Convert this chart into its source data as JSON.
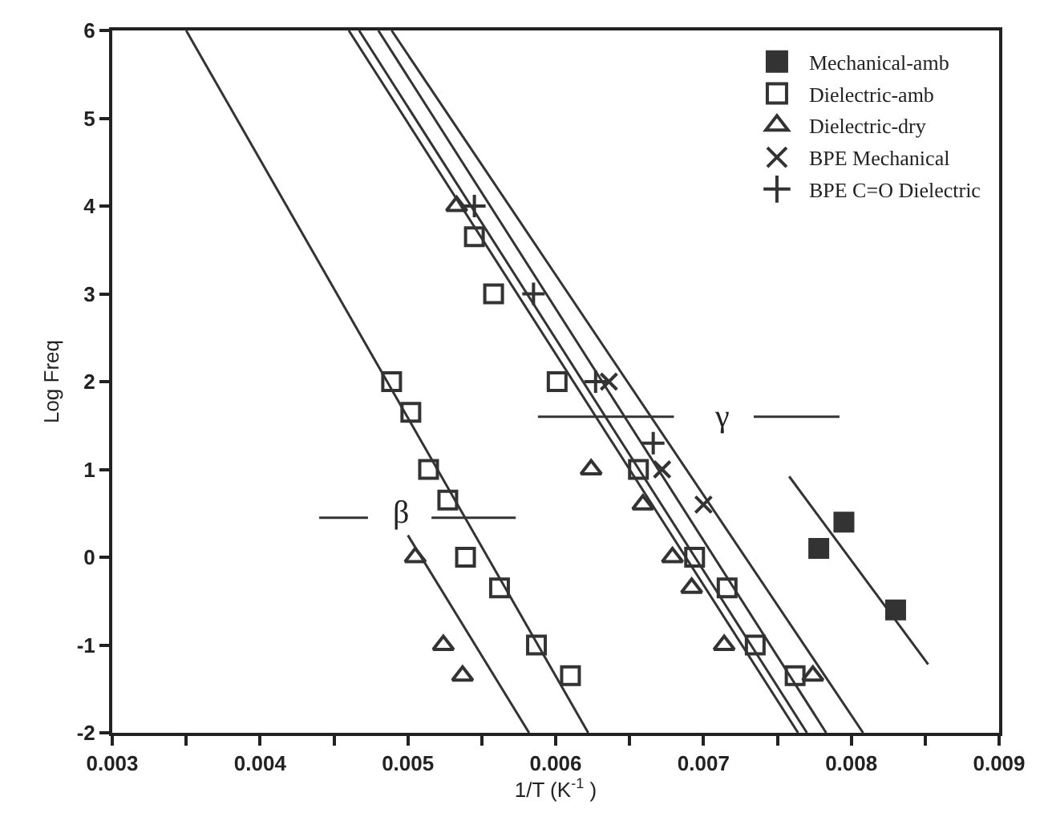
{
  "chart_data": {
    "type": "scatter",
    "xlabel": "1/T (K$^{-1}$ )",
    "ylabel": "Log Freq",
    "xlim": [
      0.003,
      0.009
    ],
    "ylim": [
      -2,
      6
    ],
    "xticks": [
      {
        "value": 0.003,
        "label": "0.003"
      },
      {
        "value": 0.0035,
        "label": null
      },
      {
        "value": 0.004,
        "label": "0.004"
      },
      {
        "value": 0.0045,
        "label": null
      },
      {
        "value": 0.005,
        "label": "0.005"
      },
      {
        "value": 0.0055,
        "label": null
      },
      {
        "value": 0.006,
        "label": "0.006"
      },
      {
        "value": 0.0065,
        "label": null
      },
      {
        "value": 0.007,
        "label": "0.007"
      },
      {
        "value": 0.0075,
        "label": null
      },
      {
        "value": 0.008,
        "label": "0.008"
      },
      {
        "value": 0.0085,
        "label": null
      },
      {
        "value": 0.009,
        "label": "0.009"
      }
    ],
    "yticks": [
      -2,
      -1,
      0,
      1,
      2,
      3,
      4,
      5,
      6
    ],
    "legend": "top right",
    "series": [
      {
        "name": "Mechanical-amb",
        "color": "#333333",
        "marker": "square",
        "x": [
          0.00778,
          0.00795,
          0.0083
        ],
        "values": [
          0.1,
          0.4,
          -0.6
        ]
      },
      {
        "name": "Dielectric-amb",
        "color": "#333333",
        "marker": "square-open",
        "x": [
          0.00489,
          0.00502,
          0.00514,
          0.00527,
          0.00539,
          0.00562,
          0.00587,
          0.0061,
          0.00545,
          0.00558,
          0.00601,
          0.00656,
          0.00694,
          0.00716,
          0.00735,
          0.00762
        ],
        "values": [
          2.0,
          1.65,
          1.0,
          0.65,
          0,
          -0.35,
          -1.0,
          -1.35,
          3.65,
          3.0,
          2.0,
          1.0,
          0,
          -0.35,
          -1.0,
          -1.35
        ]
      },
      {
        "name": "Dielectric-dry",
        "color": "#333333",
        "marker": "triangle-open",
        "x": [
          0.00505,
          0.00524,
          0.00537,
          0.00533,
          0.00624,
          0.00659,
          0.00679,
          0.00692,
          0.00714,
          0.00774
        ],
        "values": [
          0,
          -1.0,
          -1.35,
          4.0,
          1.0,
          0.6,
          0,
          -0.35,
          -1.0,
          -1.35
        ]
      },
      {
        "name": "BPE Mechanical",
        "color": "#333333",
        "marker": "x",
        "x": [
          0.00636,
          0.00672,
          0.007
        ],
        "values": [
          2.0,
          1.0,
          0.6
        ]
      },
      {
        "name": "BPE C=O Dielectric",
        "color": "#333333",
        "marker": "cross",
        "x": [
          0.00545,
          0.00585,
          0.00627,
          0.00666
        ],
        "values": [
          4.0,
          3.0,
          2.0,
          1.3
        ]
      },
      {
        "type": "line",
        "color": "#333333",
        "x": [
          0.0035,
          0.00622
        ],
        "values": [
          6,
          -2
        ]
      },
      {
        "type": "line",
        "color": "#333333",
        "x": [
          0.005,
          0.00582
        ],
        "values": [
          0.25,
          -2
        ]
      },
      {
        "type": "line",
        "color": "#333333",
        "x": [
          0.0046,
          0.00764
        ],
        "values": [
          6,
          -2
        ]
      },
      {
        "type": "line",
        "color": "#333333",
        "x": [
          0.00467,
          0.0077
        ],
        "values": [
          6,
          -2
        ]
      },
      {
        "type": "line",
        "color": "#333333",
        "x": [
          0.0048,
          0.00783
        ],
        "values": [
          6,
          -2
        ]
      },
      {
        "type": "line",
        "color": "#333333",
        "x": [
          0.00489,
          0.00808
        ],
        "values": [
          6,
          -2
        ]
      },
      {
        "type": "line",
        "color": "#333333",
        "x": [
          0.00758,
          0.00852
        ],
        "values": [
          0.92,
          -1.22
        ]
      },
      {
        "type": "line",
        "color": "#333333",
        "x": [
          0.00588,
          0.0068
        ],
        "values": [
          1.6,
          1.6
        ]
      },
      {
        "type": "line",
        "color": "#333333",
        "x": [
          0.00734,
          0.00792
        ],
        "values": [
          1.6,
          1.6
        ]
      },
      {
        "type": "line",
        "color": "#333333",
        "x": [
          0.0044,
          0.00473
        ],
        "values": [
          0.45,
          0.45
        ]
      },
      {
        "type": "line",
        "color": "#333333",
        "x": [
          0.00516,
          0.00573
        ],
        "values": [
          0.45,
          0.45
        ]
      }
    ],
    "annotations": [
      {
        "text": "γ",
        "x": 0.00712,
        "y": 1.6
      },
      {
        "text": "β",
        "x": 0.00495,
        "y": 0.5
      }
    ]
  }
}
